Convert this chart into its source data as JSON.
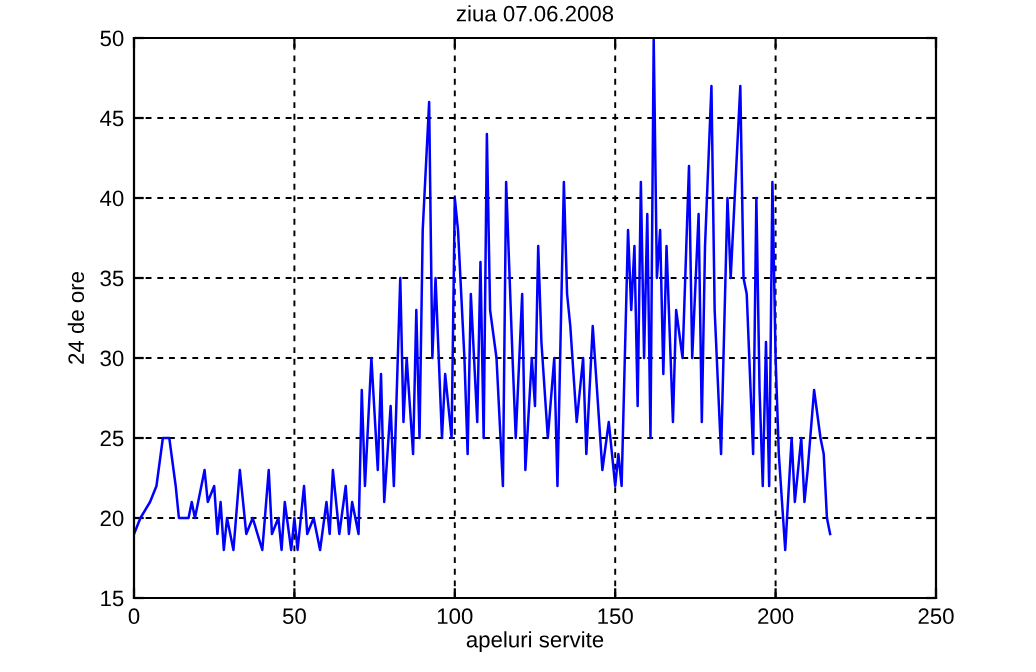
{
  "chart_data": {
    "type": "line",
    "title": "ziua 07.06.2008",
    "xlabel": "apeluri servite",
    "ylabel": "24 de ore",
    "series": [
      {
        "color": "#0000ff",
        "x": [
          0,
          2,
          5,
          7,
          9,
          11,
          13,
          14,
          17,
          18,
          19,
          22,
          23,
          25,
          26,
          27,
          28,
          29,
          31,
          33,
          35,
          37,
          40,
          42,
          43,
          45,
          46,
          47,
          49,
          50,
          51,
          53,
          54,
          56,
          58,
          60,
          61,
          62,
          64,
          66,
          67,
          68,
          70,
          71,
          72,
          74,
          76,
          77,
          78,
          80,
          81,
          83,
          84,
          85,
          87,
          88,
          89,
          90,
          92,
          93,
          94,
          96,
          97,
          99,
          100,
          101,
          103,
          104,
          105,
          107,
          108,
          109,
          110,
          111,
          113,
          115,
          116,
          118,
          119,
          121,
          122,
          124,
          125,
          126,
          127,
          129,
          131,
          132,
          134,
          135,
          136,
          138,
          140,
          141,
          143,
          144,
          146,
          148,
          150,
          151,
          152,
          154,
          155,
          156,
          157,
          158,
          159,
          160,
          161,
          162,
          163,
          164,
          165,
          166,
          168,
          169,
          171,
          173,
          174,
          176,
          177,
          178,
          180,
          181,
          183,
          185,
          186,
          189,
          190,
          191,
          193,
          194,
          195,
          196,
          197,
          198,
          199,
          200,
          201,
          203,
          205,
          206,
          208,
          209,
          210,
          212,
          214,
          215,
          216,
          217
        ],
        "values": [
          19,
          20,
          21,
          22,
          25,
          25,
          22,
          20,
          20,
          21,
          20,
          23,
          21,
          22,
          19,
          21,
          18,
          20,
          18,
          23,
          19,
          20,
          18,
          23,
          19,
          20,
          18,
          21,
          18,
          20,
          18,
          22,
          19,
          20,
          18,
          21,
          19,
          23,
          19,
          22,
          19,
          21,
          19,
          28,
          22,
          30,
          23,
          29,
          21,
          27,
          22,
          35,
          26,
          30,
          24,
          33,
          25,
          38,
          46,
          30,
          35,
          25,
          29,
          25,
          40,
          38,
          30,
          24,
          34,
          26,
          36,
          25,
          44,
          33,
          30,
          22,
          41,
          30,
          25,
          34,
          23,
          30,
          27,
          37,
          31,
          25,
          30,
          22,
          41,
          34,
          32,
          26,
          30,
          24,
          32,
          29,
          23,
          26,
          22,
          24,
          22,
          38,
          33,
          37,
          27,
          41,
          30,
          39,
          25,
          50,
          35,
          38,
          29,
          37,
          26,
          33,
          30,
          42,
          30,
          39,
          26,
          37,
          47,
          33,
          24,
          40,
          35,
          47,
          35,
          34,
          24,
          40,
          28,
          22,
          31,
          22,
          41,
          30,
          24,
          18,
          25,
          21,
          25,
          21,
          23,
          28,
          25,
          24,
          20,
          19
        ]
      }
    ],
    "xlim": [
      0,
      250
    ],
    "ylim": [
      15,
      50
    ],
    "xticks": [
      0,
      50,
      100,
      150,
      200,
      250
    ],
    "yticks": [
      15,
      20,
      25,
      30,
      35,
      40,
      45,
      50
    ],
    "grid": true,
    "line_style": "solid",
    "marker": "none"
  }
}
